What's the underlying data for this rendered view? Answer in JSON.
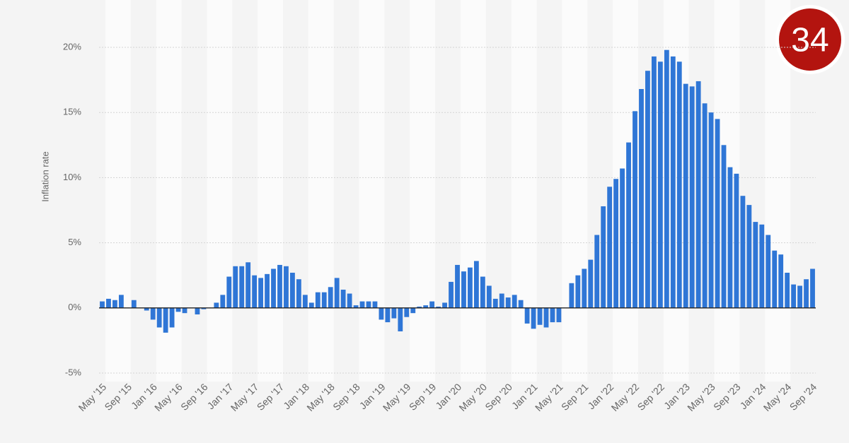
{
  "chart_data": {
    "type": "bar",
    "badge": "34",
    "y_label": "Inflation rate",
    "color": "#2f76d6",
    "categories": [
      "May '15",
      null,
      null,
      null,
      "Sep '15",
      null,
      null,
      null,
      "Jan '16",
      null,
      null,
      null,
      "May '16",
      null,
      null,
      null,
      "Sep '16",
      null,
      null,
      null,
      "Jan '17",
      null,
      null,
      null,
      "May '17",
      null,
      null,
      null,
      "Sep '17",
      null,
      null,
      null,
      "Jan '18",
      null,
      null,
      null,
      "May '18",
      null,
      null,
      null,
      "Sep '18",
      null,
      null,
      null,
      "Jan '19",
      null,
      null,
      null,
      "May '19",
      null,
      null,
      null,
      "Sep '19",
      null,
      null,
      null,
      "Jan '20",
      null,
      null,
      null,
      "May '20",
      null,
      null,
      null,
      "Sep '20",
      null,
      null,
      null,
      "Jan '21",
      null,
      null,
      null,
      "May '21",
      null,
      null,
      null,
      "Sep '21",
      null,
      null,
      null,
      "Jan '22",
      null,
      null,
      null,
      "May '22",
      null,
      null,
      null,
      "Sep '22",
      null,
      null,
      null,
      "Jan '23",
      null,
      null,
      null,
      "May '23",
      null,
      null,
      null,
      "Sep '23",
      null,
      null,
      null,
      "Jan '24",
      null,
      null,
      null,
      "May '24",
      null,
      null,
      null,
      "Sep '24"
    ],
    "values": [
      0.5,
      0.7,
      0.6,
      1.0,
      0,
      0.6,
      0,
      -0.2,
      -0.9,
      -1.5,
      -1.9,
      -1.5,
      -0.3,
      -0.4,
      0,
      -0.5,
      -0.1,
      0,
      0.4,
      1.0,
      2.4,
      3.2,
      3.2,
      3.5,
      2.5,
      2.3,
      2.6,
      3.0,
      3.3,
      3.2,
      2.7,
      2.2,
      1.0,
      0.4,
      1.2,
      1.2,
      1.6,
      2.3,
      1.4,
      1.1,
      0.2,
      0.5,
      0.5,
      0.5,
      -0.9,
      -1.1,
      -0.8,
      -1.8,
      -0.7,
      -0.4,
      0.1,
      0.2,
      0.5,
      0.1,
      0.4,
      2.0,
      3.3,
      2.8,
      3.1,
      3.6,
      2.4,
      1.7,
      0.7,
      1.1,
      0.8,
      1.0,
      0.6,
      -1.2,
      -1.6,
      -1.3,
      -1.5,
      -1.1,
      -1.1,
      0,
      1.9,
      2.5,
      3.0,
      3.7,
      5.6,
      7.8,
      9.3,
      9.9,
      10.7,
      12.7,
      15.1,
      16.8,
      18.2,
      19.3,
      18.9,
      19.8,
      19.3,
      18.9,
      17.2,
      17.0,
      17.4,
      15.7,
      15.0,
      14.5,
      12.5,
      10.8,
      10.3,
      8.6,
      7.9,
      6.6,
      6.4,
      5.6,
      4.4,
      4.1,
      2.7,
      1.8,
      1.7,
      2.2,
      3.0
    ],
    "ylim": [
      -5,
      20
    ],
    "yticks": [
      {
        "value": -5,
        "label": "-5%"
      },
      {
        "value": 0,
        "label": "0%"
      },
      {
        "value": 5,
        "label": "5%"
      },
      {
        "value": 10,
        "label": "10%"
      },
      {
        "value": 15,
        "label": "15%"
      },
      {
        "value": 20,
        "label": "20%"
      }
    ],
    "grid": true
  }
}
